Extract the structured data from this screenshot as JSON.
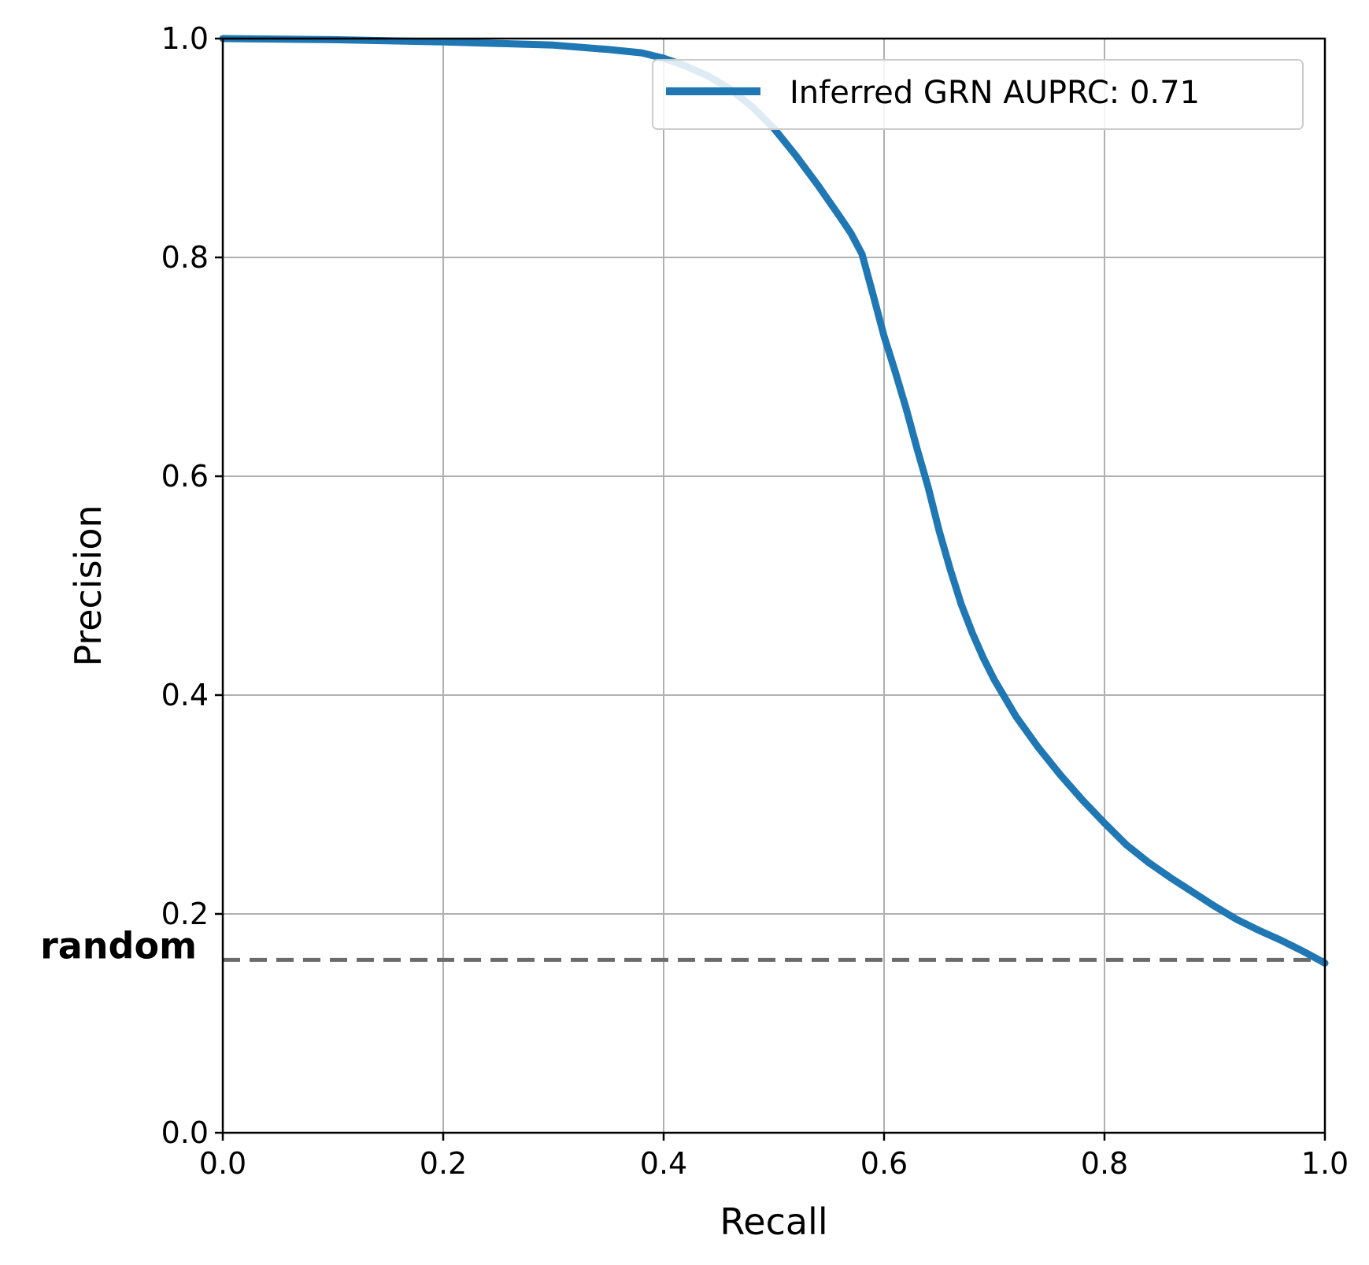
{
  "chart_data": {
    "type": "line",
    "title": "",
    "xlabel": "Recall",
    "ylabel": "Precision",
    "xlim": [
      0.0,
      1.0
    ],
    "ylim": [
      0.0,
      1.0
    ],
    "grid": true,
    "legend_placement": "top-right",
    "x_ticks": [
      "0.0",
      "0.2",
      "0.4",
      "0.6",
      "0.8",
      "1.0"
    ],
    "y_ticks": [
      "0.0",
      "0.2",
      "0.4",
      "0.6",
      "0.8",
      "1.0"
    ],
    "series": [
      {
        "name": "Inferred GRN AUPRC: 0.71",
        "color": "#1f77b4",
        "x": [
          0.0,
          0.1,
          0.2,
          0.3,
          0.35,
          0.38,
          0.4,
          0.42,
          0.44,
          0.46,
          0.48,
          0.5,
          0.52,
          0.54,
          0.56,
          0.57,
          0.58,
          0.59,
          0.6,
          0.61,
          0.62,
          0.63,
          0.64,
          0.65,
          0.66,
          0.67,
          0.68,
          0.69,
          0.7,
          0.72,
          0.74,
          0.76,
          0.78,
          0.8,
          0.82,
          0.84,
          0.86,
          0.88,
          0.9,
          0.92,
          0.94,
          0.96,
          0.98,
          1.0
        ],
        "y": [
          1.0,
          0.999,
          0.997,
          0.994,
          0.99,
          0.987,
          0.982,
          0.975,
          0.966,
          0.954,
          0.938,
          0.918,
          0.893,
          0.866,
          0.837,
          0.822,
          0.803,
          0.766,
          0.728,
          0.696,
          0.662,
          0.625,
          0.59,
          0.55,
          0.515,
          0.483,
          0.457,
          0.434,
          0.414,
          0.38,
          0.352,
          0.327,
          0.304,
          0.283,
          0.263,
          0.247,
          0.233,
          0.22,
          0.207,
          0.195,
          0.185,
          0.176,
          0.166,
          0.155
        ]
      }
    ],
    "baseline": {
      "label": "random",
      "y": 0.158,
      "color": "#6b6b6b",
      "style": "dashed"
    }
  }
}
